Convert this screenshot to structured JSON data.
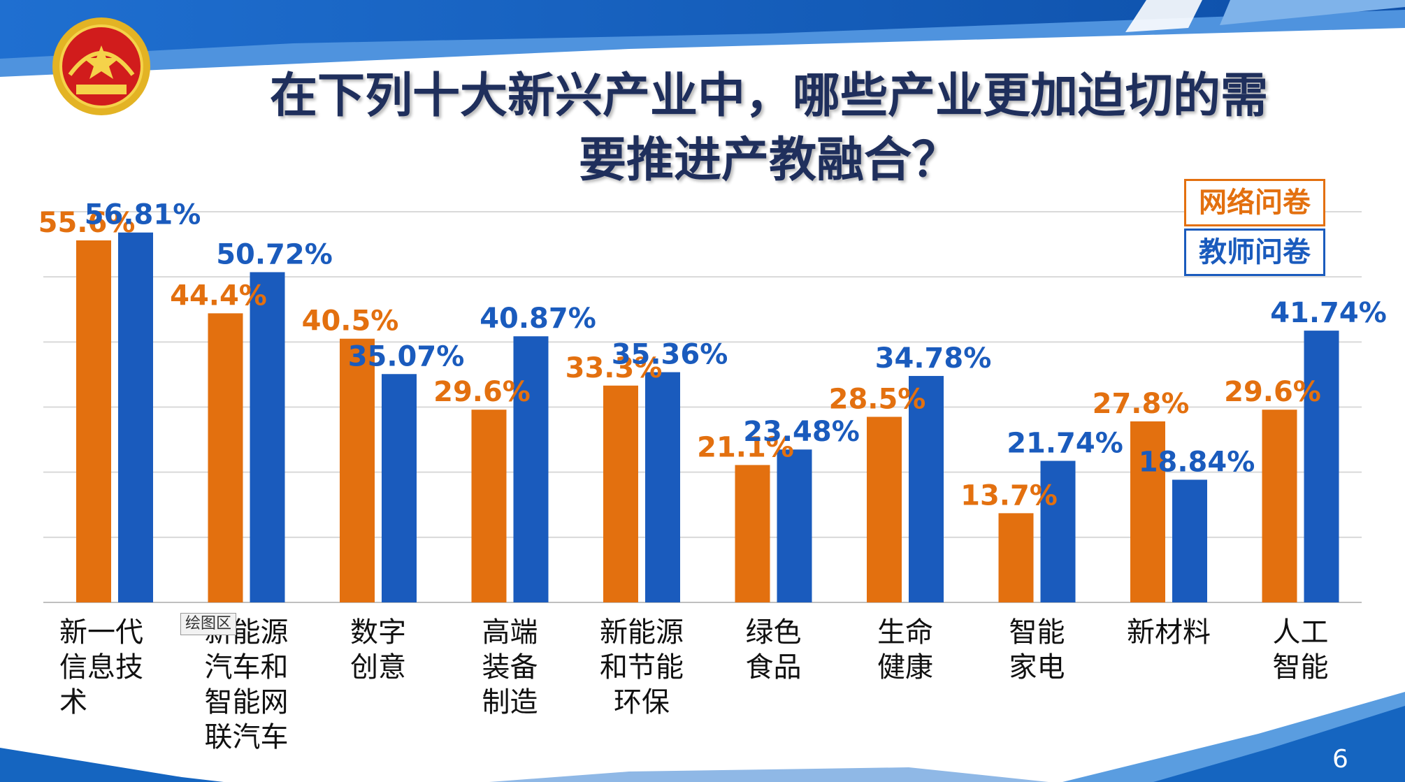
{
  "title_line1": "在下列十大新兴产业中，哪些产业更加迫切的需",
  "title_line2": "要推进产教融合？",
  "legend": {
    "online": "网络问卷",
    "teacher": "教师问卷"
  },
  "plot_area_tag": "绘图区",
  "page_number": "6",
  "icons": {
    "logo": "cppcc-emblem-icon"
  },
  "colors": {
    "online": "#E3700F",
    "teacher": "#1A5BBD",
    "title": "#1F2F5C",
    "banner": "#1565C0"
  },
  "chart_data": {
    "type": "bar",
    "grid": true,
    "ylim": [
      0,
      60
    ],
    "categories": [
      [
        "新一代",
        "信息技",
        "术"
      ],
      [
        "新能源",
        "汽车和",
        "智能网",
        "联汽车"
      ],
      [
        "数字",
        "创意"
      ],
      [
        "高端",
        "装备",
        "制造"
      ],
      [
        "新能源",
        "和节能",
        "环保"
      ],
      [
        "绿色",
        "食品"
      ],
      [
        "生命",
        "健康"
      ],
      [
        "智能",
        "家电"
      ],
      [
        "新材料"
      ],
      [
        "人工",
        "智能"
      ]
    ],
    "series": [
      {
        "name": "网络问卷",
        "values": [
          55.6,
          44.4,
          40.5,
          29.6,
          33.3,
          21.1,
          28.5,
          13.7,
          27.8,
          29.6
        ],
        "labels": [
          "55.6%",
          "44.4%",
          "40.5%",
          "29.6%",
          "33.3%",
          "21.1%",
          "28.5%",
          "13.7%",
          "27.8%",
          "29.6%"
        ]
      },
      {
        "name": "教师问卷",
        "values": [
          56.81,
          50.72,
          35.07,
          40.87,
          35.36,
          23.48,
          34.78,
          21.74,
          18.84,
          41.74
        ],
        "labels": [
          "56.81%",
          "50.72%",
          "35.07%",
          "40.87%",
          "35.36%",
          "23.48%",
          "34.78%",
          "21.74%",
          "18.84%",
          "41.74%"
        ]
      }
    ]
  }
}
